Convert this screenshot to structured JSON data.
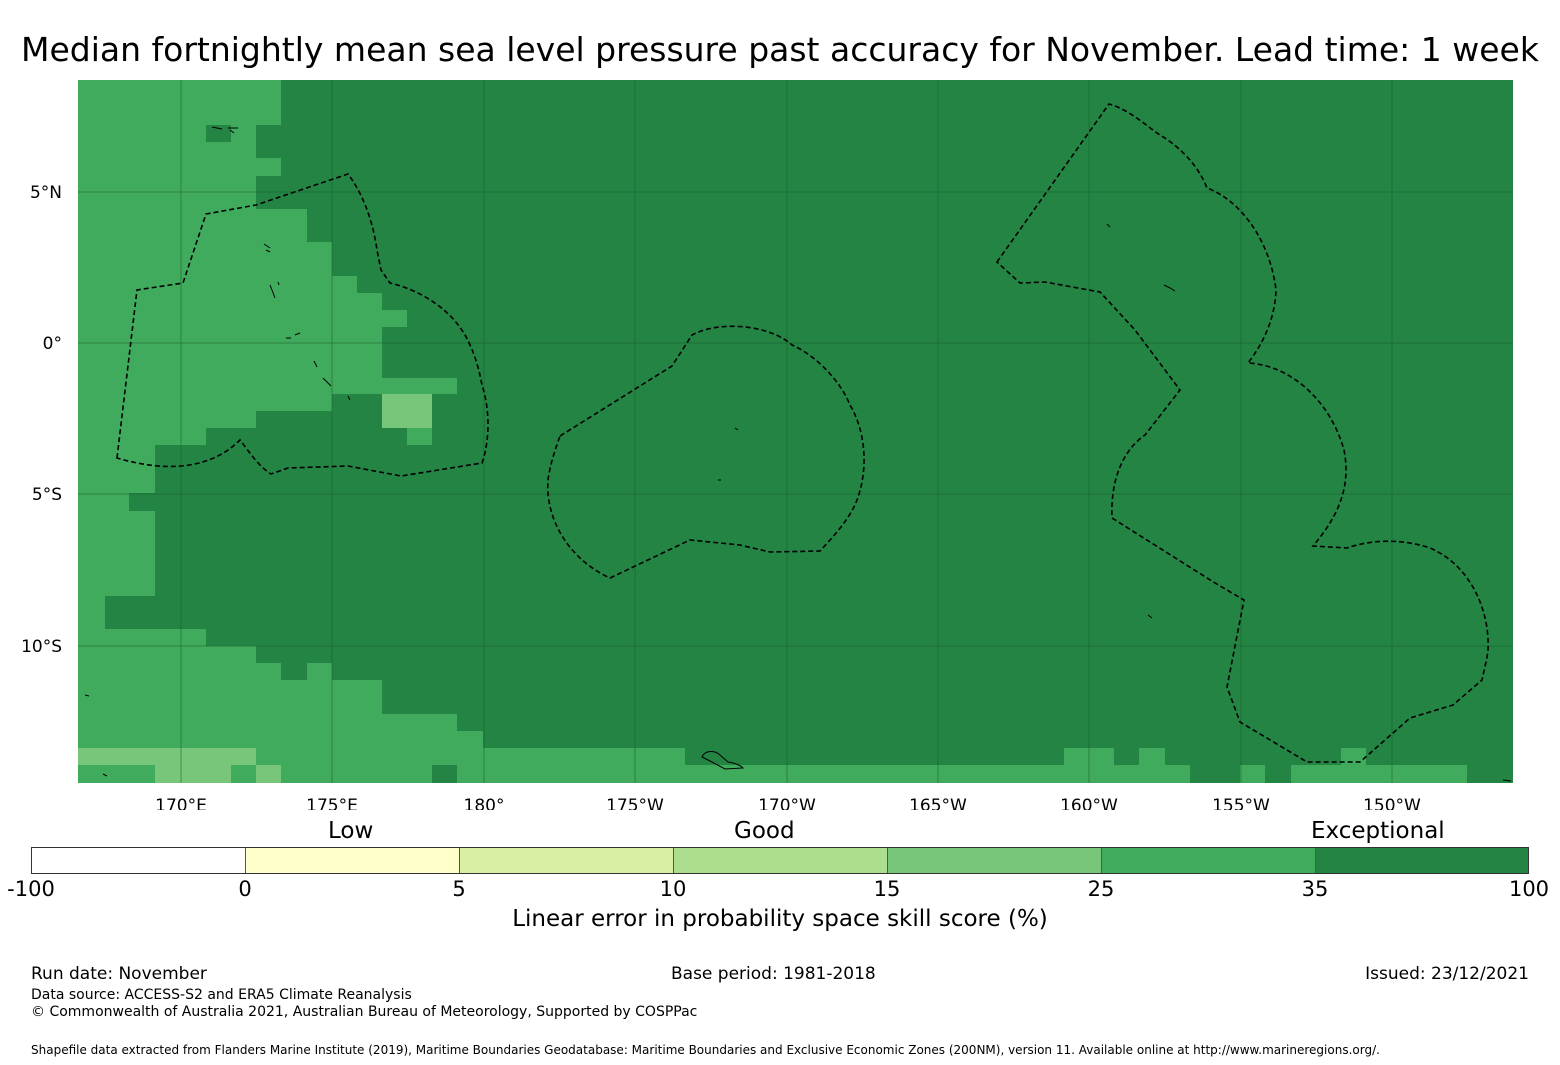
{
  "title": "Median fortnightly mean sea level pressure past accuracy for November. Lead time: 1 week",
  "map": {
    "lat_labels": [
      "5°N",
      "0°",
      "5°S",
      "10°S"
    ],
    "lon_labels": [
      "170°E",
      "175°E",
      "180°",
      "175°W",
      "170°W",
      "165°W",
      "160°W",
      "155°W",
      "150°W"
    ],
    "colors": {
      "exceptional_dark": "#238443",
      "score_25_35": "#41ab5d",
      "score_15_25": "#78c679",
      "eez_boundary": "#000000"
    }
  },
  "colorbar": {
    "category_labels": [
      "Low",
      "Good",
      "Exceptional"
    ],
    "ticks": [
      "-100",
      "0",
      "5",
      "10",
      "15",
      "25",
      "35",
      "100"
    ],
    "colors": [
      "#ffffff",
      "#ffffcc",
      "#d9f0a3",
      "#addd8e",
      "#78c679",
      "#41ab5d",
      "#238443"
    ],
    "label": "Linear error in probability space skill score (%)"
  },
  "footer": {
    "run_date": "Run date: November",
    "base_period": "Base period: 1981-2018",
    "issued": "Issued: 23/12/2021",
    "data_source": "Data source: ACCESS-S2 and ERA5 Climate Reanalysis",
    "copyright": "© Commonwealth of Australia 2021, Australian Bureau of Meteorology, Supported by COSPPac",
    "shapefile": "Shapefile data extracted from Flanders Marine Institute (2019), Maritime Boundaries Geodatabase: Maritime Boundaries and Exclusive Economic Zones (200NM), version 11. Available online at http://www.marineregions.org/."
  }
}
